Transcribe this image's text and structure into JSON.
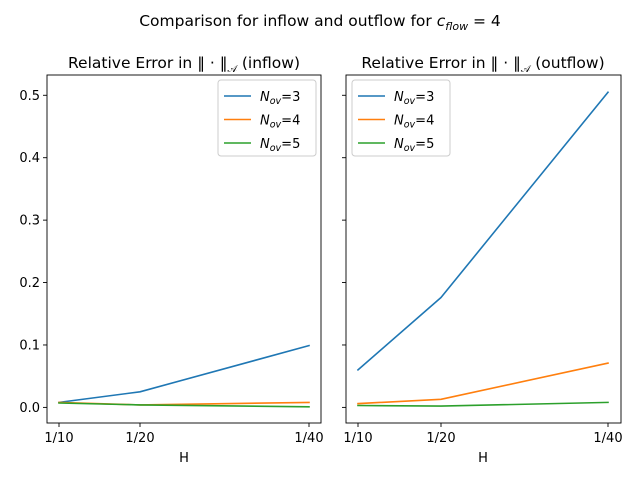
{
  "figure": {
    "suptitle_prefix": "Comparison for inflow and outflow for ",
    "suptitle_var": "c",
    "suptitle_sub": "flow",
    "suptitle_suffix": " = 4",
    "background": "#ffffff"
  },
  "chart_data": [
    {
      "type": "line",
      "title_prefix": "Relative Error in ",
      "title_norm": "‖ · ‖",
      "title_sub": "𝒜",
      "title_suffix": " (inflow)",
      "xlabel": "H",
      "ylabel": "",
      "categories": [
        "1/10",
        "1/20",
        "1/40"
      ],
      "x": [
        10,
        20,
        40
      ],
      "ylim": [
        -0.025,
        0.5325
      ],
      "yticks": [
        0.0,
        0.1,
        0.2,
        0.3,
        0.4,
        0.5
      ],
      "ytick_labels": [
        "0.0",
        "0.1",
        "0.2",
        "0.3",
        "0.4",
        "0.5"
      ],
      "show_ytick_labels": true,
      "legend": "top-right",
      "series": [
        {
          "name_var": "N",
          "name_sub": "ov",
          "name_suffix": "=3",
          "color": "#1f77b4",
          "values": [
            0.008,
            0.025,
            0.099
          ]
        },
        {
          "name_var": "N",
          "name_sub": "ov",
          "name_suffix": "=4",
          "color": "#ff7f0e",
          "values": [
            0.008,
            0.004,
            0.008
          ]
        },
        {
          "name_var": "N",
          "name_sub": "ov",
          "name_suffix": "=5",
          "color": "#2ca02c",
          "values": [
            0.007,
            0.004,
            0.001
          ]
        }
      ]
    },
    {
      "type": "line",
      "title_prefix": "Relative Error in ",
      "title_norm": "‖ · ‖",
      "title_sub": "𝒜",
      "title_suffix": " (outflow)",
      "xlabel": "H",
      "ylabel": "",
      "categories": [
        "1/10",
        "1/20",
        "1/40"
      ],
      "x": [
        10,
        20,
        40
      ],
      "ylim": [
        -0.025,
        0.5325
      ],
      "yticks": [
        0.0,
        0.1,
        0.2,
        0.3,
        0.4,
        0.5
      ],
      "ytick_labels": [
        "0.0",
        "0.1",
        "0.2",
        "0.3",
        "0.4",
        "0.5"
      ],
      "show_ytick_labels": false,
      "legend": "top-left",
      "series": [
        {
          "name_var": "N",
          "name_sub": "ov",
          "name_suffix": "=3",
          "color": "#1f77b4",
          "values": [
            0.06,
            0.176,
            0.505
          ]
        },
        {
          "name_var": "N",
          "name_sub": "ov",
          "name_suffix": "=4",
          "color": "#ff7f0e",
          "values": [
            0.006,
            0.013,
            0.071
          ]
        },
        {
          "name_var": "N",
          "name_sub": "ov",
          "name_suffix": "=5",
          "color": "#2ca02c",
          "values": [
            0.003,
            0.002,
            0.008
          ]
        }
      ]
    }
  ]
}
